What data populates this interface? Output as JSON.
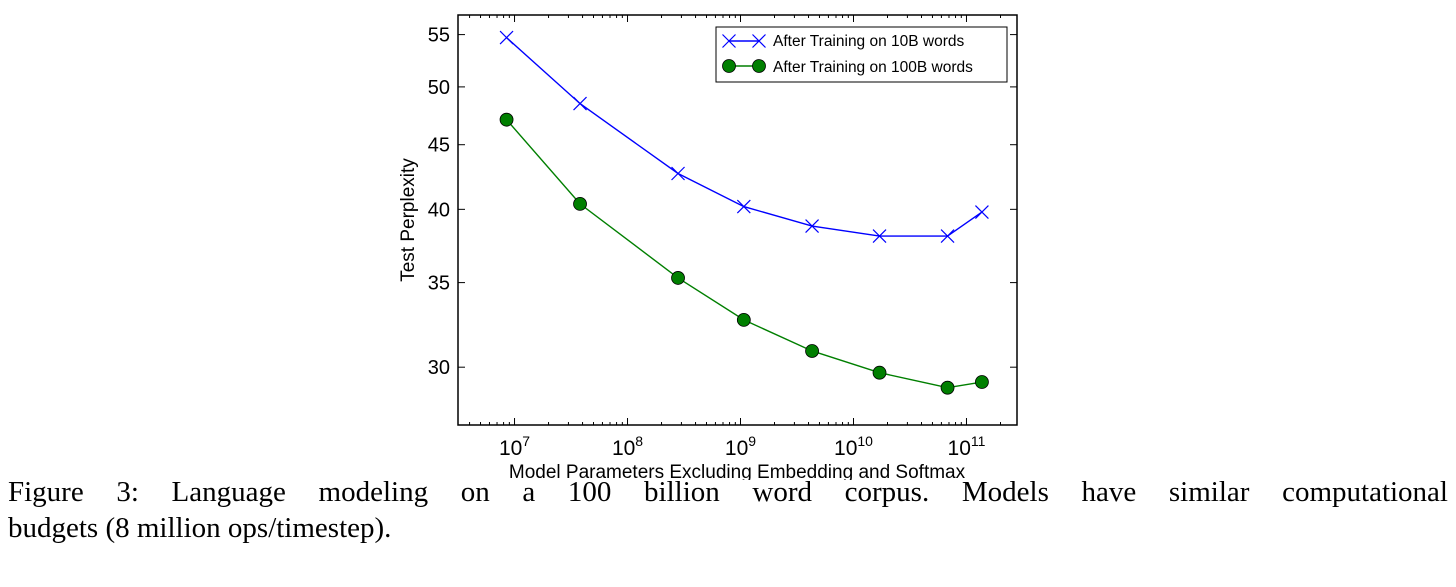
{
  "chart_data": {
    "type": "line",
    "title": "",
    "xlabel": "Model Parameters Excluding Embedding and Softmax",
    "ylabel": "Test Perplexity",
    "xscale": "log",
    "yscale": "log",
    "xlim": [
      3160000.0,
      280000000000.0
    ],
    "ylim": [
      27,
      57
    ],
    "xticks": [
      10000000.0,
      100000000.0,
      1000000000.0,
      10000000000.0,
      100000000000.0
    ],
    "xtick_labels": [
      {
        "base": "10",
        "exp": "7"
      },
      {
        "base": "10",
        "exp": "8"
      },
      {
        "base": "10",
        "exp": "9"
      },
      {
        "base": "10",
        "exp": "10"
      },
      {
        "base": "10",
        "exp": "11"
      }
    ],
    "yticks": [
      30,
      35,
      40,
      45,
      50,
      55
    ],
    "ytick_labels": [
      "30",
      "35",
      "40",
      "45",
      "50",
      "55"
    ],
    "grid": false,
    "legend_position": "top-right",
    "x": [
      8500000.0,
      38000000.0,
      280000000.0,
      1070000000.0,
      4300000000.0,
      17000000000.0,
      68000000000.0,
      137000000000.0
    ],
    "series": [
      {
        "name": "After Training on 10B words",
        "color": "#0000ff",
        "marker": "x",
        "values": [
          54.7,
          48.5,
          42.7,
          40.2,
          38.8,
          38.1,
          38.1,
          39.8
        ]
      },
      {
        "name": "After Training on 100B words",
        "color": "#007f00",
        "marker": "o",
        "values": [
          47.1,
          40.4,
          35.3,
          32.7,
          30.9,
          29.7,
          28.9,
          29.2
        ]
      }
    ]
  },
  "caption": {
    "line1": "Figure 3: Language modeling on a 100 billion word corpus. Models have similar computational",
    "line2": "budgets (8 million ops/timestep)."
  }
}
